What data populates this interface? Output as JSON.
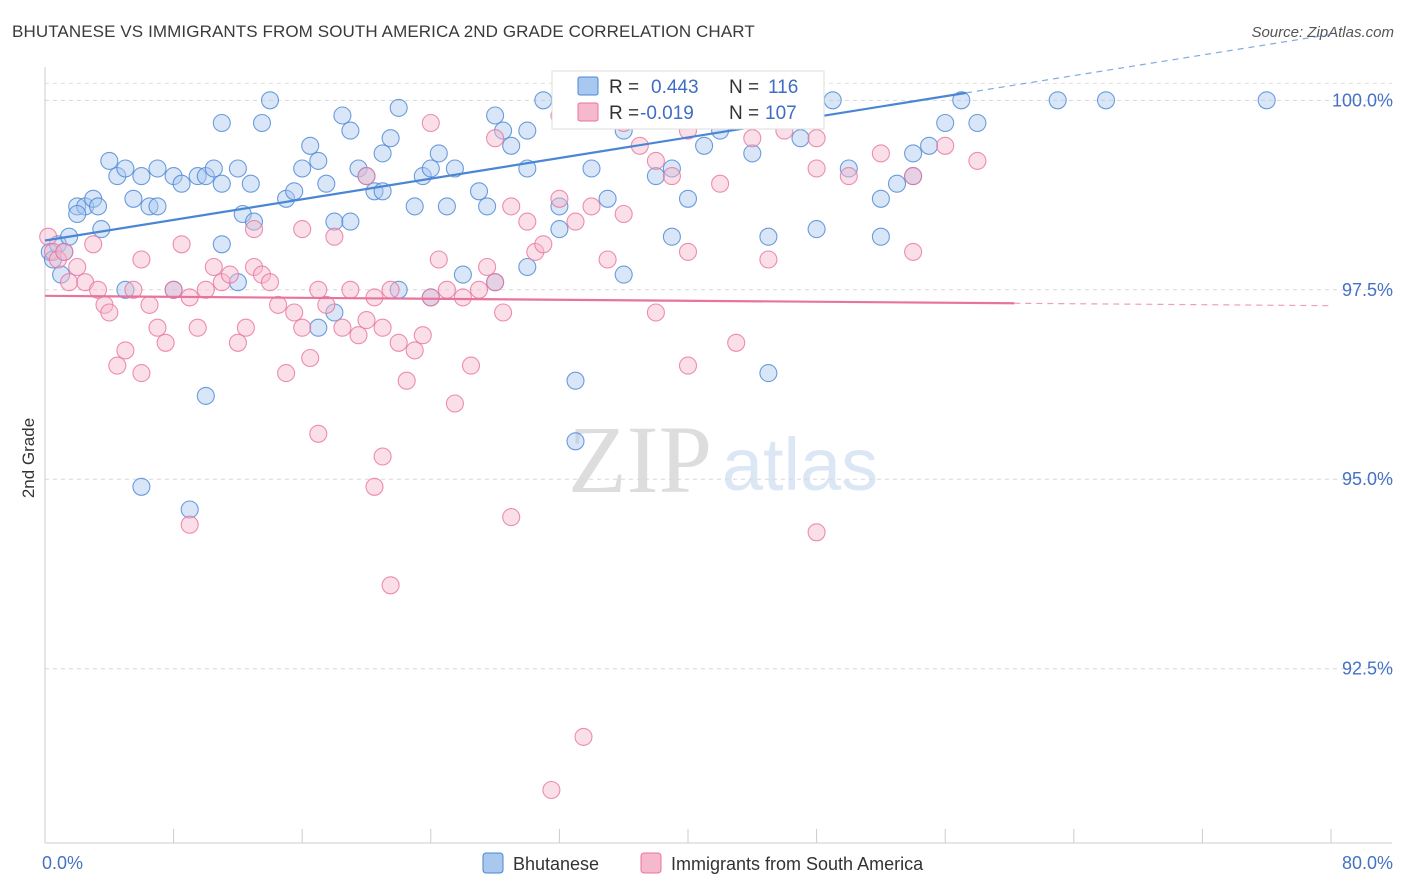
{
  "title": "BHUTANESE VS IMMIGRANTS FROM SOUTH AMERICA 2ND GRADE CORRELATION CHART",
  "source": "Source: ZipAtlas.com",
  "watermark": {
    "zip": "ZIP",
    "atlas": "atlas"
  },
  "chart_data": {
    "type": "scatter",
    "title": "BHUTANESE VS IMMIGRANTS FROM SOUTH AMERICA 2ND GRADE CORRELATION CHART",
    "xlabel": "",
    "ylabel": "2nd Grade",
    "xlim": [
      0,
      80
    ],
    "ylim": [
      90.2,
      100.4
    ],
    "x_tick_labels": {
      "min": "0.0%",
      "max": "80.0%"
    },
    "y_ticks": [
      {
        "value": 100.0,
        "label": "100.0%"
      },
      {
        "value": 97.5,
        "label": "97.5%"
      },
      {
        "value": 95.0,
        "label": "95.0%"
      },
      {
        "value": 92.5,
        "label": "92.5%"
      }
    ],
    "legend_position": "bottom-center",
    "stats_position": "top-center",
    "series": [
      {
        "name": "Bhutanese",
        "color": "#4a86d4",
        "fill": "#a8c8f0",
        "R": "0.443",
        "N": "116",
        "trend": {
          "x0": 0,
          "y0": 98.15,
          "x1": 80,
          "y1": 100.87,
          "solid_until_x": 57.3
        },
        "points": [
          [
            0.3,
            98.0
          ],
          [
            0.5,
            97.9
          ],
          [
            0.8,
            98.1
          ],
          [
            1,
            97.7
          ],
          [
            1.2,
            98.0
          ],
          [
            1.5,
            98.2
          ],
          [
            2,
            98.6
          ],
          [
            2.5,
            98.6
          ],
          [
            3,
            98.7
          ],
          [
            3.3,
            98.6
          ],
          [
            3.5,
            98.3
          ],
          [
            4,
            99.2
          ],
          [
            4.5,
            99.0
          ],
          [
            5,
            99.1
          ],
          [
            5.5,
            98.7
          ],
          [
            6,
            99.0
          ],
          [
            6.5,
            98.6
          ],
          [
            7,
            99.1
          ],
          [
            8,
            99.0
          ],
          [
            8.5,
            98.9
          ],
          [
            9.5,
            99.0
          ],
          [
            10,
            99.0
          ],
          [
            10.5,
            99.1
          ],
          [
            11,
            98.9
          ],
          [
            12,
            99.1
          ],
          [
            12.3,
            98.5
          ],
          [
            12.8,
            98.9
          ],
          [
            13,
            98.4
          ],
          [
            11,
            99.7
          ],
          [
            13.5,
            99.7
          ],
          [
            14,
            100.0
          ],
          [
            15,
            98.7
          ],
          [
            15.5,
            98.8
          ],
          [
            16,
            99.1
          ],
          [
            16.5,
            99.4
          ],
          [
            17,
            99.2
          ],
          [
            17.5,
            98.9
          ],
          [
            18,
            98.4
          ],
          [
            18.5,
            99.8
          ],
          [
            19,
            99.6
          ],
          [
            19.5,
            99.1
          ],
          [
            20,
            99.0
          ],
          [
            20.5,
            98.8
          ],
          [
            21,
            99.3
          ],
          [
            21.5,
            99.5
          ],
          [
            22,
            99.9
          ],
          [
            23,
            98.6
          ],
          [
            23.5,
            99.0
          ],
          [
            24,
            99.1
          ],
          [
            24.5,
            99.3
          ],
          [
            25,
            98.6
          ],
          [
            25.5,
            99.1
          ],
          [
            27,
            98.8
          ],
          [
            27.5,
            98.6
          ],
          [
            28,
            99.8
          ],
          [
            28.5,
            99.6
          ],
          [
            29,
            99.4
          ],
          [
            30,
            99.1
          ],
          [
            31,
            100.0
          ],
          [
            32,
            98.6
          ],
          [
            34,
            99.1
          ],
          [
            35,
            98.7
          ],
          [
            36,
            99.6
          ],
          [
            37,
            100.0
          ],
          [
            38,
            99.0
          ],
          [
            39,
            99.1
          ],
          [
            40,
            98.7
          ],
          [
            41,
            99.4
          ],
          [
            42,
            99.6
          ],
          [
            44,
            99.3
          ],
          [
            45,
            98.2
          ],
          [
            47,
            99.5
          ],
          [
            49,
            100.0
          ],
          [
            50,
            99.1
          ],
          [
            52,
            98.7
          ],
          [
            53,
            98.9
          ],
          [
            54,
            99.3
          ],
          [
            55,
            99.4
          ],
          [
            56,
            99.7
          ],
          [
            57,
            100.0
          ],
          [
            52,
            98.2
          ],
          [
            54,
            99.0
          ],
          [
            58,
            99.7
          ],
          [
            40,
            100.0
          ],
          [
            44,
            100.0
          ],
          [
            63,
            100.0
          ],
          [
            66,
            100.0
          ],
          [
            76,
            100.0
          ],
          [
            36,
            100.0
          ],
          [
            30,
            99.6
          ],
          [
            11,
            98.1
          ],
          [
            7,
            98.6
          ],
          [
            2,
            98.5
          ],
          [
            5,
            97.5
          ],
          [
            8,
            97.5
          ],
          [
            10,
            96.1
          ],
          [
            12,
            97.6
          ],
          [
            17,
            97.0
          ],
          [
            18,
            97.2
          ],
          [
            19,
            98.4
          ],
          [
            22,
            97.5
          ],
          [
            24,
            97.4
          ],
          [
            26,
            97.7
          ],
          [
            28,
            97.6
          ],
          [
            30,
            97.8
          ],
          [
            33,
            96.3
          ],
          [
            33,
            95.5
          ],
          [
            36,
            97.7
          ],
          [
            6,
            94.9
          ],
          [
            9,
            94.6
          ],
          [
            45,
            96.4
          ],
          [
            48,
            98.3
          ],
          [
            39,
            98.2
          ],
          [
            32,
            98.3
          ],
          [
            21,
            98.8
          ]
        ]
      },
      {
        "name": "Immigrants from South America",
        "color": "#e8739e",
        "fill": "#f6b8cc",
        "R": "-0.019",
        "N": "107",
        "trend": {
          "x0": 0,
          "y0": 97.42,
          "x1": 80,
          "y1": 97.29,
          "solid_until_x": 60.3
        },
        "points": [
          [
            0.2,
            98.2
          ],
          [
            0.5,
            98.0
          ],
          [
            0.8,
            97.9
          ],
          [
            1.2,
            98.0
          ],
          [
            1.5,
            97.6
          ],
          [
            2,
            97.8
          ],
          [
            2.5,
            97.6
          ],
          [
            3,
            98.1
          ],
          [
            3.3,
            97.5
          ],
          [
            3.7,
            97.3
          ],
          [
            4,
            97.2
          ],
          [
            4.5,
            96.5
          ],
          [
            5,
            96.7
          ],
          [
            5.5,
            97.5
          ],
          [
            6,
            97.9
          ],
          [
            6.5,
            97.3
          ],
          [
            7,
            97.0
          ],
          [
            7.5,
            96.8
          ],
          [
            8,
            97.5
          ],
          [
            8.5,
            98.1
          ],
          [
            9,
            97.4
          ],
          [
            9.5,
            97.0
          ],
          [
            10,
            97.5
          ],
          [
            10.5,
            97.8
          ],
          [
            11,
            97.6
          ],
          [
            11.5,
            97.7
          ],
          [
            12,
            96.8
          ],
          [
            12.5,
            97.0
          ],
          [
            13,
            97.8
          ],
          [
            13.5,
            97.7
          ],
          [
            14,
            97.6
          ],
          [
            14.5,
            97.3
          ],
          [
            15,
            96.4
          ],
          [
            15.5,
            97.2
          ],
          [
            16,
            97.0
          ],
          [
            16.5,
            96.6
          ],
          [
            17,
            97.5
          ],
          [
            17.5,
            97.3
          ],
          [
            18,
            98.2
          ],
          [
            18.5,
            97.0
          ],
          [
            19,
            97.5
          ],
          [
            19.5,
            96.9
          ],
          [
            20,
            97.1
          ],
          [
            20.5,
            97.4
          ],
          [
            21,
            97.0
          ],
          [
            21.5,
            97.5
          ],
          [
            22,
            96.8
          ],
          [
            22.5,
            96.3
          ],
          [
            23,
            96.7
          ],
          [
            23.5,
            96.9
          ],
          [
            24,
            97.4
          ],
          [
            24.5,
            97.9
          ],
          [
            25,
            97.5
          ],
          [
            25.5,
            96.0
          ],
          [
            26,
            97.4
          ],
          [
            26.5,
            96.5
          ],
          [
            27,
            97.5
          ],
          [
            27.5,
            97.8
          ],
          [
            28,
            97.6
          ],
          [
            28.5,
            97.2
          ],
          [
            29,
            98.6
          ],
          [
            30,
            98.4
          ],
          [
            30.5,
            98.0
          ],
          [
            31,
            98.1
          ],
          [
            32,
            98.7
          ],
          [
            33,
            98.4
          ],
          [
            34,
            98.6
          ],
          [
            35,
            97.9
          ],
          [
            36,
            98.5
          ],
          [
            37,
            99.4
          ],
          [
            38,
            99.2
          ],
          [
            39,
            99.0
          ],
          [
            40,
            98.0
          ],
          [
            42,
            98.9
          ],
          [
            44,
            99.5
          ],
          [
            46,
            99.6
          ],
          [
            48,
            99.1
          ],
          [
            50,
            99.0
          ],
          [
            52,
            99.3
          ],
          [
            54,
            99.0
          ],
          [
            56,
            99.4
          ],
          [
            58,
            99.2
          ],
          [
            13,
            98.3
          ],
          [
            16,
            98.3
          ],
          [
            20,
            99.0
          ],
          [
            24,
            99.7
          ],
          [
            28,
            99.5
          ],
          [
            32,
            99.8
          ],
          [
            36,
            99.7
          ],
          [
            40,
            99.6
          ],
          [
            44,
            99.9
          ],
          [
            48,
            99.5
          ],
          [
            17,
            95.6
          ],
          [
            21,
            95.3
          ],
          [
            20.5,
            94.9
          ],
          [
            21.5,
            93.6
          ],
          [
            29,
            94.5
          ],
          [
            9,
            94.4
          ],
          [
            48,
            94.3
          ],
          [
            40,
            96.5
          ],
          [
            43,
            96.8
          ],
          [
            45,
            97.9
          ],
          [
            54,
            98.0
          ],
          [
            33.5,
            91.6
          ],
          [
            31.5,
            90.9
          ],
          [
            6,
            96.4
          ],
          [
            38,
            97.2
          ]
        ]
      }
    ]
  },
  "legend": {
    "items": [
      {
        "label": "Bhutanese"
      },
      {
        "label": "Immigrants from South America"
      }
    ]
  },
  "stats": {
    "r_label": "R =",
    "n_label": "N ="
  }
}
